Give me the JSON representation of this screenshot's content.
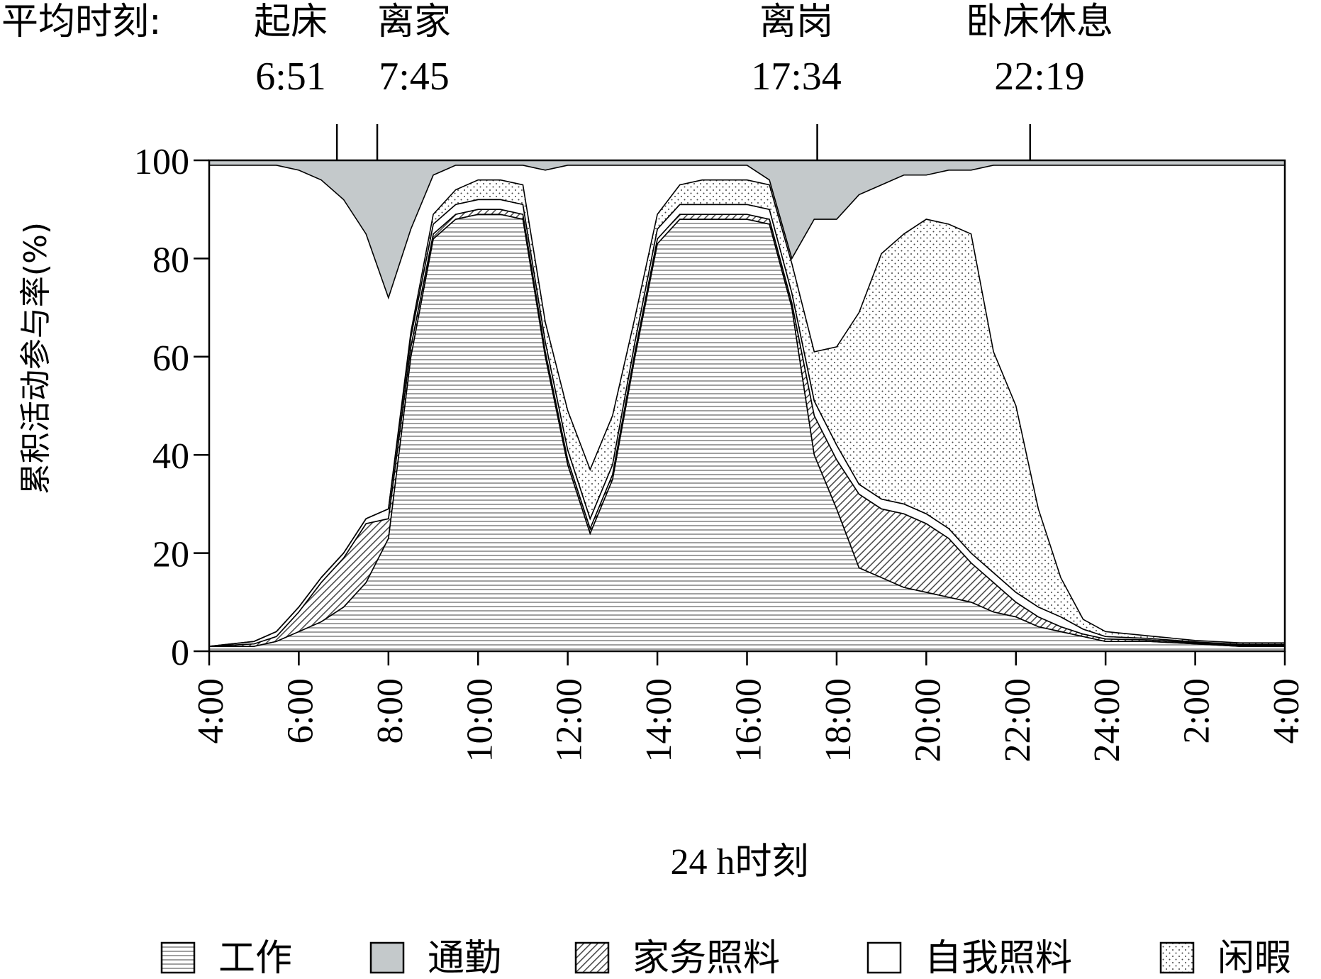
{
  "header": {
    "prefix": "平均时刻:",
    "events": [
      {
        "label": "起床",
        "time": "6:51",
        "hour": 6.85
      },
      {
        "label": "离家",
        "time": "7:45",
        "hour": 7.75
      },
      {
        "label": "离岗",
        "time": "17:34",
        "hour": 17.567
      },
      {
        "label": "卧床休息",
        "time": "22:19",
        "hour": 22.317
      }
    ]
  },
  "chart_data": {
    "type": "area",
    "stacked": true,
    "xlabel": "24 h时刻",
    "ylabel": "累积活动参与率(%)",
    "xlim": [
      4,
      28
    ],
    "ylim": [
      0,
      100
    ],
    "yticks": [
      0,
      20,
      40,
      60,
      80,
      100
    ],
    "xticks": [
      4,
      6,
      8,
      10,
      12,
      14,
      16,
      18,
      20,
      22,
      24,
      26,
      28
    ],
    "xtick_labels": [
      "4:00",
      "6:00",
      "8:00",
      "10:00",
      "12:00",
      "14:00",
      "16:00",
      "18:00",
      "20:00",
      "22:00",
      "24:00",
      "2:00",
      "4:00"
    ],
    "legend_position": "bottom",
    "grid": false,
    "x": [
      4,
      5,
      5.5,
      6,
      6.5,
      7,
      7.5,
      8,
      8.5,
      9,
      9.5,
      10,
      10.5,
      11,
      11.5,
      12,
      12.5,
      13,
      13.5,
      14,
      14.5,
      15,
      15.5,
      16,
      16.5,
      17,
      17.5,
      18,
      18.5,
      19,
      19.5,
      20,
      20.5,
      21,
      21.5,
      22,
      22.5,
      23,
      23.5,
      24,
      25,
      26,
      27,
      28
    ],
    "series": [
      {
        "name": "工作",
        "pattern": "horizontal-lines",
        "values": [
          1,
          1,
          2,
          4,
          6,
          9,
          14,
          23,
          60,
          84,
          88,
          89,
          89,
          88,
          60,
          38,
          24,
          35,
          60,
          83,
          88,
          88,
          88,
          88,
          87,
          70,
          40,
          29,
          17,
          15,
          13,
          12,
          11,
          10,
          8,
          7,
          5,
          4,
          3,
          2,
          2,
          1.5,
          1,
          1
        ]
      },
      {
        "name": "通勤",
        "pattern": "gray",
        "values": [
          0.3,
          0.5,
          1,
          2,
          4,
          6,
          8,
          10,
          8,
          2,
          1,
          1,
          1,
          1,
          1,
          1,
          1,
          1,
          1,
          1,
          1,
          1,
          1,
          1,
          1,
          2,
          2,
          1,
          0.5,
          0.5,
          0.5,
          0.5,
          0.5,
          0.3,
          0.3,
          0.3,
          0.2,
          0.2,
          0.2,
          0.1,
          0.1,
          0.1,
          0.1,
          0.1
        ]
      },
      {
        "name": "家务照料",
        "pattern": "diagonal-hatch",
        "values": [
          0,
          0.5,
          1,
          4,
          8,
          10,
          12,
          4,
          2,
          1,
          1,
          1,
          1,
          1,
          1,
          1,
          1,
          1,
          1,
          1,
          1,
          1,
          1,
          1,
          1,
          1,
          8,
          10,
          15,
          14,
          15,
          14,
          12,
          8,
          6,
          3,
          2,
          1,
          0.5,
          0.5,
          0.3,
          0.2,
          0.2,
          0.2
        ]
      },
      {
        "name": "自我照料",
        "pattern": "white",
        "values": [
          0,
          0.5,
          1,
          1,
          1,
          1,
          1,
          2,
          2,
          2,
          2,
          2,
          2,
          2,
          2,
          2,
          2,
          2,
          2,
          2,
          2,
          2,
          2,
          2,
          2,
          2,
          3,
          3,
          2,
          2,
          2,
          2,
          2,
          2,
          2,
          2,
          2,
          2,
          1,
          0.5,
          0.3,
          0.2,
          0.2,
          0.2
        ]
      },
      {
        "name": "闲暇",
        "pattern": "dots",
        "values": [
          0,
          0,
          0,
          0,
          0,
          0,
          0,
          0,
          1,
          2,
          3,
          4,
          4,
          4,
          4,
          8,
          10,
          10,
          5,
          3,
          4,
          5,
          5,
          5,
          5,
          6,
          10,
          20,
          35,
          50,
          55,
          60,
          62,
          65,
          45,
          38,
          20,
          8,
          2,
          1,
          0.5,
          0.3,
          0.3,
          0.3
        ]
      }
    ],
    "commute_top_values": [
      99,
      99,
      99,
      98,
      96,
      92,
      85,
      72,
      86,
      97,
      99,
      99,
      99,
      99,
      98,
      99,
      99,
      99,
      99,
      99,
      99,
      99,
      99,
      99,
      96,
      80,
      88,
      88,
      93,
      95,
      97,
      97,
      98,
      98,
      99,
      99,
      99,
      99,
      99,
      99,
      99,
      99,
      99,
      99
    ]
  }
}
